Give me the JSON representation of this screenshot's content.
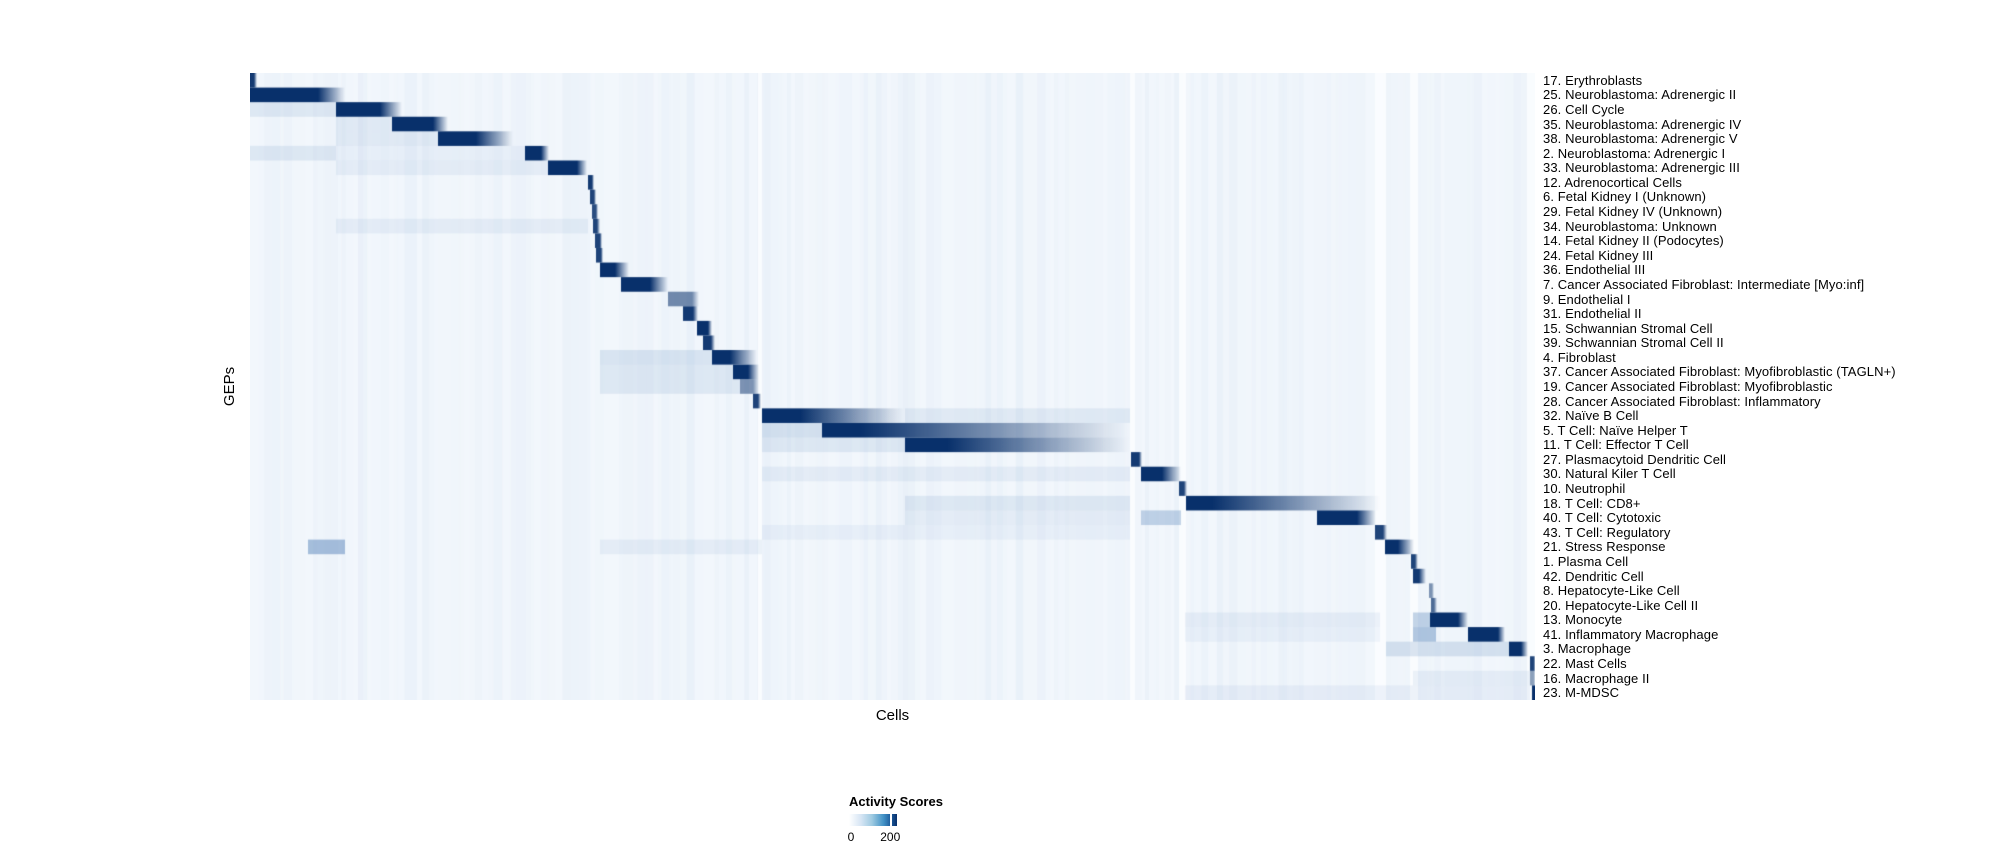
{
  "figure": {
    "xlabel": "Cells",
    "ylabel": "GEPs"
  },
  "legend": {
    "title": "Activity Scores",
    "tick_min": "0",
    "tick_max": "200"
  },
  "chart_data": {
    "type": "heatmap",
    "title": "",
    "xlabel": "Cells",
    "ylabel": "GEPs",
    "colorbar": {
      "title": "Activity Scores",
      "min": 0,
      "tick_max": 200,
      "tick_max_position": 0.86
    },
    "colors": {
      "plot_bg": "#f2f7fc",
      "core": "#08306b",
      "stripe": "#82a5d2",
      "band": "#4678b4",
      "light_column": "#fcfeff"
    },
    "plot_width_units": 1285,
    "plot_height_units": 627,
    "grid": false,
    "legend_position": "bottom-center",
    "light_columns": [
      [
        508,
        512
      ],
      [
        880,
        885
      ],
      [
        929,
        936
      ],
      [
        1125,
        1136
      ],
      [
        1160,
        1168
      ],
      [
        1277,
        1285
      ]
    ],
    "rows": [
      {
        "label": "17. Erythroblasts",
        "core": [
          0,
          4
        ],
        "fade": 7,
        "intensity": 0.95
      },
      {
        "label": "25. Neuroblastoma: Adrenergic II",
        "core": [
          0,
          68
        ],
        "fade": 95,
        "intensity": 1
      },
      {
        "label": "26. Cell Cycle",
        "core": [
          86,
          130
        ],
        "fade": 152,
        "intensity": 1,
        "bands": [
          [
            0,
            86,
            0.12
          ]
        ]
      },
      {
        "label": "35. Neuroblastoma: Adrenergic IV",
        "core": [
          142,
          183
        ],
        "fade": 198,
        "intensity": 1,
        "bands": [
          [
            86,
            142,
            0.1
          ]
        ]
      },
      {
        "label": "38. Neuroblastoma: Adrenergic V",
        "core": [
          188,
          226
        ],
        "fade": 263,
        "intensity": 1,
        "bands": [
          [
            86,
            188,
            0.1
          ]
        ]
      },
      {
        "label": "2. Neuroblastoma: Adrenergic I",
        "core": [
          275,
          291
        ],
        "fade": 299,
        "intensity": 1,
        "bands": [
          [
            0,
            86,
            0.12
          ],
          [
            86,
            275,
            0.06
          ]
        ]
      },
      {
        "label": "33. Neuroblastoma: Adrenergic III",
        "core": [
          298,
          327
        ],
        "fade": 337,
        "intensity": 1,
        "bands": [
          [
            86,
            298,
            0.08
          ]
        ]
      },
      {
        "label": "12. Adrenocortical Cells",
        "core": [
          338,
          342
        ],
        "fade": 344,
        "intensity": 0.95
      },
      {
        "label": "6. Fetal Kidney I (Unknown)",
        "core": [
          340,
          344
        ],
        "fade": 346,
        "intensity": 0.9
      },
      {
        "label": "29. Fetal Kidney IV (Unknown)",
        "core": [
          342,
          346
        ],
        "fade": 348,
        "intensity": 0.85
      },
      {
        "label": "34. Neuroblastoma: Unknown",
        "core": [
          343,
          347
        ],
        "fade": 350,
        "intensity": 0.9,
        "bands": [
          [
            86,
            338,
            0.08
          ]
        ]
      },
      {
        "label": "14. Fetal Kidney II (Podocytes)",
        "core": [
          345,
          350
        ],
        "fade": 352,
        "intensity": 0.9
      },
      {
        "label": "24. Fetal Kidney III",
        "core": [
          346,
          351
        ],
        "fade": 353,
        "intensity": 0.9
      },
      {
        "label": "36. Endothelial III",
        "core": [
          350,
          365
        ],
        "fade": 379,
        "intensity": 1
      },
      {
        "label": "7. Cancer Associated Fibroblast: Intermediate [Myo:inf]",
        "core": [
          371,
          400
        ],
        "fade": 418,
        "intensity": 1
      },
      {
        "label": "9. Endothelial I",
        "core": [
          418,
          442
        ],
        "fade": 449,
        "intensity": 0.55
      },
      {
        "label": "31. Endothelial II",
        "core": [
          433,
          443
        ],
        "fade": 448,
        "intensity": 0.95
      },
      {
        "label": "15. Schwannian Stromal Cell",
        "core": [
          447,
          458
        ],
        "fade": 462,
        "intensity": 1
      },
      {
        "label": "39. Schwannian Stromal Cell II",
        "core": [
          453,
          461
        ],
        "fade": 465,
        "intensity": 0.95
      },
      {
        "label": "4. Fibroblast",
        "core": [
          462,
          480
        ],
        "fade": 507,
        "intensity": 1,
        "bands": [
          [
            350,
            462,
            0.15
          ]
        ]
      },
      {
        "label": "37. Cancer Associated Fibroblast: Myofibroblastic (TAGLN+)",
        "core": [
          483,
          498
        ],
        "fade": 509,
        "intensity": 1,
        "bands": [
          [
            350,
            483,
            0.12
          ]
        ]
      },
      {
        "label": "19. Cancer Associated Fibroblast: Myofibroblastic",
        "core": [
          490,
          503
        ],
        "fade": 509,
        "intensity": 0.5,
        "bands": [
          [
            350,
            490,
            0.12
          ]
        ]
      },
      {
        "label": "28. Cancer Associated Fibroblast: Inflammatory",
        "core": [
          503,
          508
        ],
        "fade": 511,
        "intensity": 0.9
      },
      {
        "label": "32. Naïve B Cell",
        "core": [
          512,
          550
        ],
        "fade": 655,
        "intensity": 1,
        "bands": [
          [
            655,
            880,
            0.1
          ]
        ]
      },
      {
        "label": "5. T Cell: Naïve Helper T",
        "core": [
          572,
          610
        ],
        "fade": 880,
        "intensity": 1,
        "bands": [
          [
            512,
            572,
            0.18
          ]
        ]
      },
      {
        "label": "11. T Cell: Effector T Cell",
        "core": [
          655,
          697
        ],
        "fade": 880,
        "intensity": 1,
        "bands": [
          [
            512,
            655,
            0.12
          ]
        ]
      },
      {
        "label": "27. Plasmacytoid Dendritic Cell",
        "core": [
          881,
          889
        ],
        "fade": 892,
        "intensity": 0.95
      },
      {
        "label": "30. Natural Kiler T Cell",
        "core": [
          891,
          912
        ],
        "fade": 931,
        "intensity": 1,
        "bands": [
          [
            512,
            880,
            0.08
          ]
        ]
      },
      {
        "label": "10. Neutrophil",
        "core": [
          929,
          934
        ],
        "fade": 937,
        "intensity": 0.9
      },
      {
        "label": "18. T Cell: CD8+",
        "core": [
          936,
          962
        ],
        "fade": 1130,
        "intensity": 1,
        "bands": [
          [
            655,
            880,
            0.12
          ]
        ]
      },
      {
        "label": "40. T Cell: Cytotoxic",
        "core": [
          1067,
          1107
        ],
        "fade": 1126,
        "intensity": 1,
        "bands": [
          [
            891,
            931,
            0.3
          ],
          [
            655,
            880,
            0.08
          ]
        ]
      },
      {
        "label": "43. T Cell: Regulatory",
        "core": [
          1125,
          1133
        ],
        "fade": 1137,
        "intensity": 0.9,
        "bands": [
          [
            512,
            880,
            0.06
          ]
        ]
      },
      {
        "label": "21. Stress Response",
        "core": [
          1135,
          1148
        ],
        "fade": 1164,
        "intensity": 1,
        "bands": [
          [
            58,
            95,
            0.45
          ],
          [
            350,
            512,
            0.08
          ]
        ]
      },
      {
        "label": "1. Plasma Cell",
        "core": [
          1161,
          1165
        ],
        "fade": 1168,
        "intensity": 0.9
      },
      {
        "label": "42. Dendritic Cell",
        "core": [
          1163,
          1169
        ],
        "fade": 1176,
        "intensity": 0.95
      },
      {
        "label": "8. Hepatocyte-Like Cell",
        "core": [
          1179,
          1182
        ],
        "fade": 1184,
        "intensity": 0.5
      },
      {
        "label": "20. Hepatocyte-Like Cell II",
        "core": [
          1181,
          1184
        ],
        "fade": 1187,
        "intensity": 0.7
      },
      {
        "label": "13. Monocyte",
        "core": [
          1180,
          1208
        ],
        "fade": 1218,
        "intensity": 1,
        "bands": [
          [
            1163,
            1180,
            0.3
          ],
          [
            935,
            1130,
            0.08
          ]
        ]
      },
      {
        "label": "41. Inflammatory Macrophage",
        "core": [
          1218,
          1248
        ],
        "fade": 1255,
        "intensity": 1,
        "bands": [
          [
            1163,
            1186,
            0.4
          ],
          [
            935,
            1130,
            0.06
          ]
        ]
      },
      {
        "label": "3. Macrophage",
        "core": [
          1259,
          1271
        ],
        "fade": 1278,
        "intensity": 1,
        "bands": [
          [
            1136,
            1259,
            0.18
          ]
        ]
      },
      {
        "label": "22. Mast Cells",
        "core": [
          1280,
          1284
        ],
        "fade": 1285,
        "intensity": 0.9
      },
      {
        "label": "16. Macrophage II",
        "core": [
          1280,
          1284
        ],
        "fade": 1285,
        "intensity": 0.45,
        "bands": [
          [
            1163,
            1280,
            0.08
          ]
        ]
      },
      {
        "label": "23. M-MDSC",
        "core": [
          1282,
          1285
        ],
        "fade": 1285,
        "intensity": 1,
        "bands": [
          [
            935,
            1280,
            0.07
          ]
        ]
      }
    ]
  }
}
